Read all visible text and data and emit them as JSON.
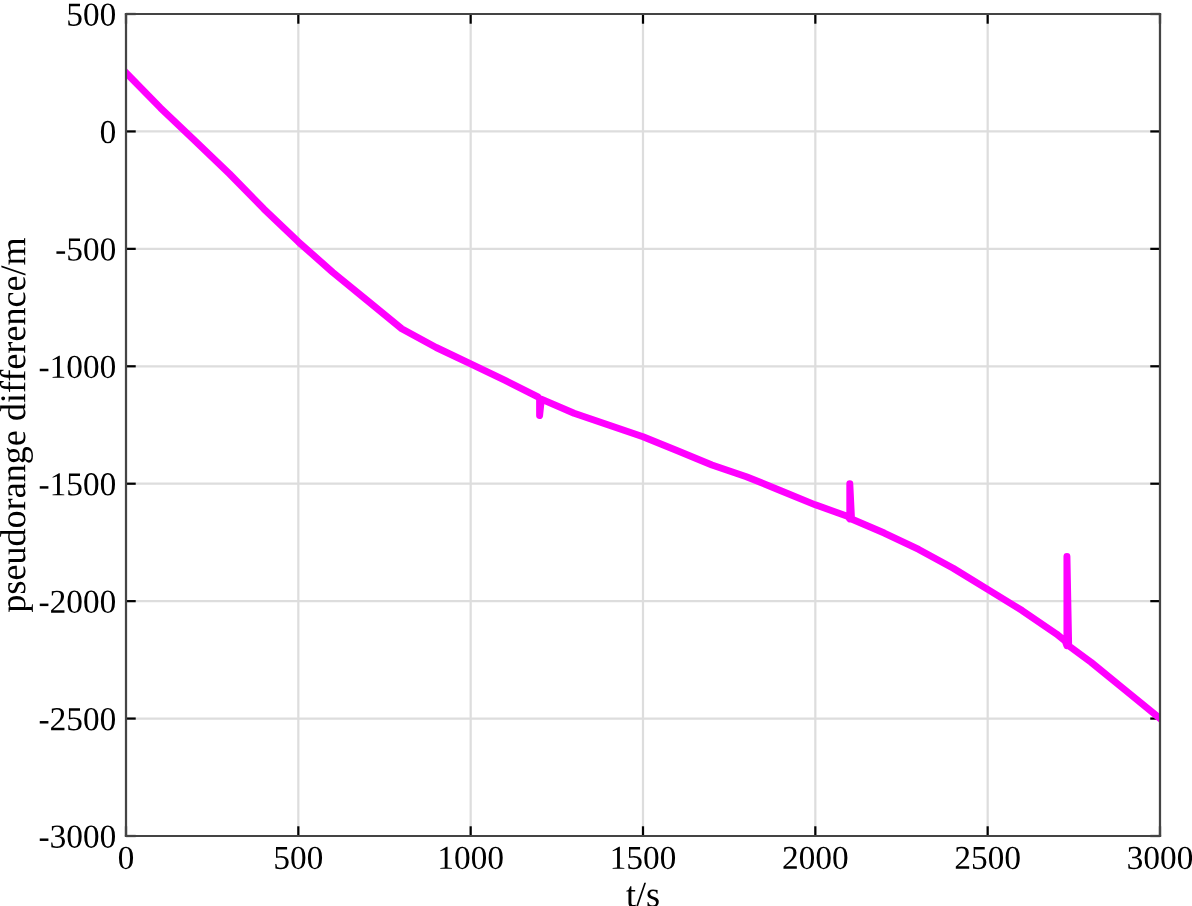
{
  "chart_data": {
    "type": "line",
    "xlabel": "t/s",
    "ylabel": "pseudorange difference/m",
    "x": [
      0,
      100,
      200,
      300,
      400,
      500,
      600,
      700,
      800,
      900,
      1000,
      1100,
      1195,
      1200,
      1200,
      1205,
      1300,
      1400,
      1500,
      1600,
      1700,
      1800,
      1900,
      2000,
      2095,
      2100,
      2100,
      2105,
      2200,
      2300,
      2400,
      2500,
      2600,
      2700,
      2725,
      2730,
      2730,
      2735,
      2800,
      2900,
      3000
    ],
    "series": [
      {
        "color": "#ff00ff",
        "values": [
          250,
          100,
          -40,
          -180,
          -330,
          -470,
          -600,
          -720,
          -840,
          -920,
          -990,
          -1060,
          -1130,
          -1140,
          -1210,
          -1140,
          -1200,
          -1250,
          -1300,
          -1360,
          -1420,
          -1470,
          -1530,
          -1590,
          -1640,
          -1650,
          -1500,
          -1650,
          -1710,
          -1780,
          -1860,
          -1950,
          -2040,
          -2140,
          -2170,
          -2190,
          -1810,
          -2190,
          -2260,
          -2380,
          -2500
        ]
      }
    ],
    "xlim": [
      0,
      3000
    ],
    "ylim": [
      -3000,
      500
    ],
    "xticks": [
      0,
      500,
      1000,
      1500,
      2000,
      2500,
      3000
    ],
    "yticks": [
      -3000,
      -2500,
      -2000,
      -1500,
      -1000,
      -500,
      0,
      500
    ],
    "grid": true,
    "line_style": "solid",
    "marker": "none"
  }
}
